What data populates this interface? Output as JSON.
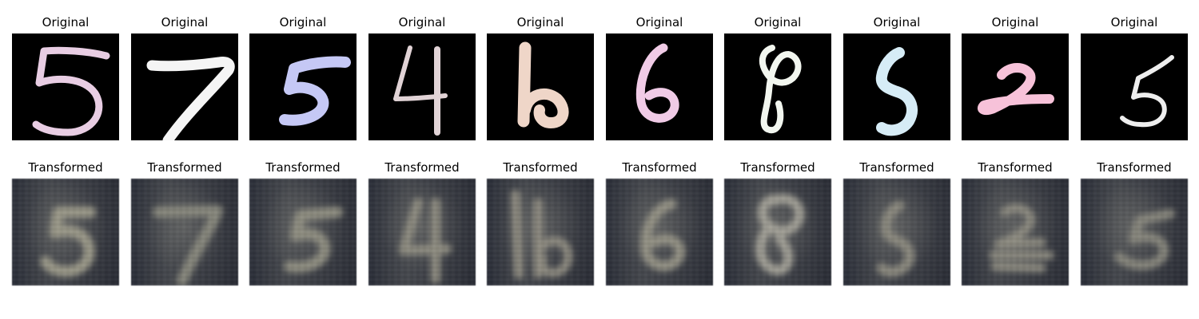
{
  "rows": {
    "original_caption": "Original",
    "transformed_caption": "Transformed"
  },
  "digits": [
    {
      "digit": "5",
      "color": "#e8cde3"
    },
    {
      "digit": "7",
      "color": "#f5f5f5"
    },
    {
      "digit": "5",
      "color": "#c5c8f5"
    },
    {
      "digit": "4",
      "color": "#e1d3d6"
    },
    {
      "digit": "6",
      "color": "#efd6c8"
    },
    {
      "digit": "6",
      "color": "#f0cbe6"
    },
    {
      "digit": "8",
      "color": "#f2f6ef"
    },
    {
      "digit": "5",
      "color": "#d6ecf6"
    },
    {
      "digit": "2",
      "color": "#f7c2d9"
    },
    {
      "digit": "5",
      "color": "#eeeeee"
    }
  ]
}
